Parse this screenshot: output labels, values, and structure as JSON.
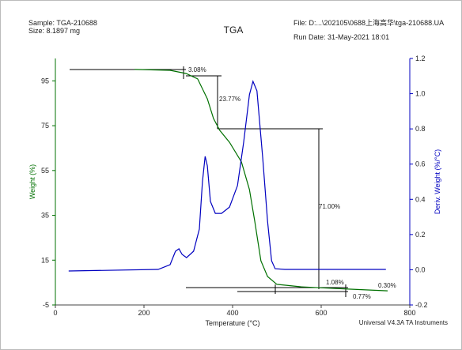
{
  "chart_data": {
    "type": "line",
    "title": "TGA",
    "sample": "Sample: TGA-210688",
    "size": "Size: 8.1897 mg",
    "file": "File: D:...\\202105\\0688上海高华\\tga-210688.UA",
    "run_date": "Run Date: 31-May-2021 18:01",
    "footer": "Universal V4.3A TA Instruments",
    "xlabel": "Temperature (°C)",
    "ylabel": "Weight (%)",
    "y2label": "Deriv. Weight (%/°C)",
    "xlim": [
      0,
      800
    ],
    "xticks": [
      0,
      200,
      400,
      600,
      800
    ],
    "ylim": [
      -5,
      105
    ],
    "yticks": [
      -5,
      15,
      35,
      55,
      75,
      95
    ],
    "y2lim": [
      -0.2,
      1.2
    ],
    "y2ticks": [
      -0.2,
      {
        "value": 0,
        "label": "0.0"
      },
      0.2,
      0.4,
      0.6,
      0.8,
      {
        "value": 1,
        "label": "1.0"
      },
      1.2
    ],
    "series": [
      {
        "color": "#007000",
        "x": [
          179,
          259,
          295,
          321,
          343,
          357,
          371,
          393,
          420,
          438,
          450,
          464,
          479,
          500,
          554,
          661,
          750
        ],
        "values": [
          100.1,
          99.7,
          98.3,
          95.9,
          87.0,
          78.2,
          72.9,
          67.6,
          58.8,
          46.5,
          32.4,
          14.7,
          7.7,
          4.2,
          3.1,
          2.1,
          1.3
        ]
      },
      {
        "color": "#0000c0",
        "axis": "y2",
        "x": [
          30,
          232,
          259,
          271,
          279,
          286,
          296,
          312,
          325,
          332,
          338,
          343,
          350,
          361,
          375,
          393,
          411,
          425,
          438,
          446,
          455,
          468,
          479,
          488,
          496,
          518,
          746
        ],
        "values": [
          -0.007,
          0.002,
          0.029,
          0.105,
          0.119,
          0.087,
          0.069,
          0.105,
          0.231,
          0.5,
          0.644,
          0.59,
          0.388,
          0.32,
          0.32,
          0.356,
          0.478,
          0.724,
          0.994,
          1.07,
          1.016,
          0.635,
          0.276,
          0.051,
          0.006,
          0.002,
          0.002
        ]
      }
    ],
    "annotations": [
      "3.08%",
      "23.77%",
      "71.00%",
      "1.08%",
      "0.30%",
      "0.77%"
    ]
  }
}
